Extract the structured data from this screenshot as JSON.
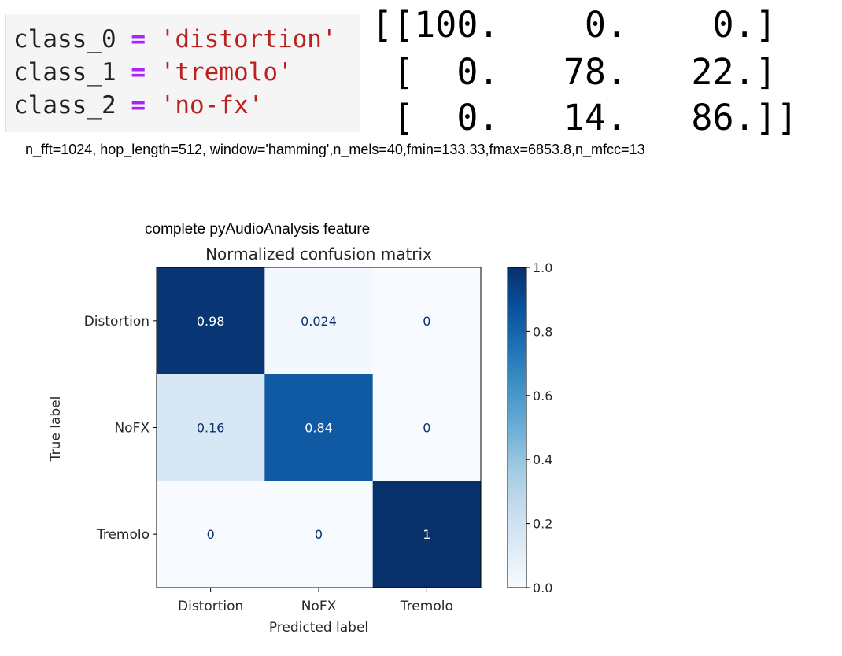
{
  "code": {
    "lines": [
      {
        "var": "class_0",
        "op": "=",
        "value": "'distortion'"
      },
      {
        "var": "class_1",
        "op": "=",
        "value": "'tremolo'"
      },
      {
        "var": "class_2",
        "op": "=",
        "value": "'no-fx'"
      }
    ]
  },
  "matrix_output": {
    "lines": [
      "[[100.    0.    0.]",
      " [  0.   78.   22.]",
      " [  0.   14.   86.]]"
    ]
  },
  "params_text": "n_fft=1024, hop_length=512, window='hamming',n_mels=40,fmin=133.33,fmax=6853.8,n_mfcc=13",
  "caption": "complete pyAudioAnalysis feature",
  "colors": {
    "cmap": "Blues",
    "low": "#f7fbff",
    "high": "#08306b",
    "text_dark_bg": "#ffffff",
    "text_light_bg": "#08306b"
  },
  "chart_data": {
    "type": "heatmap",
    "title": "Normalized confusion matrix",
    "xlabel": "Predicted label",
    "ylabel": "True label",
    "row_labels": [
      "Distortion",
      "NoFX",
      "Tremolo"
    ],
    "col_labels": [
      "Distortion",
      "NoFX",
      "Tremolo"
    ],
    "values": [
      [
        0.98,
        0.024,
        0
      ],
      [
        0.16,
        0.84,
        0
      ],
      [
        0,
        0,
        1
      ]
    ],
    "value_labels": [
      [
        "0.98",
        "0.024",
        "0"
      ],
      [
        "0.16",
        "0.84",
        "0"
      ],
      [
        "0",
        "0",
        "1"
      ]
    ],
    "colorbar": {
      "range": [
        0.0,
        1.0
      ],
      "ticks": [
        "0.0",
        "0.2",
        "0.4",
        "0.6",
        "0.8",
        "1.0"
      ]
    }
  }
}
